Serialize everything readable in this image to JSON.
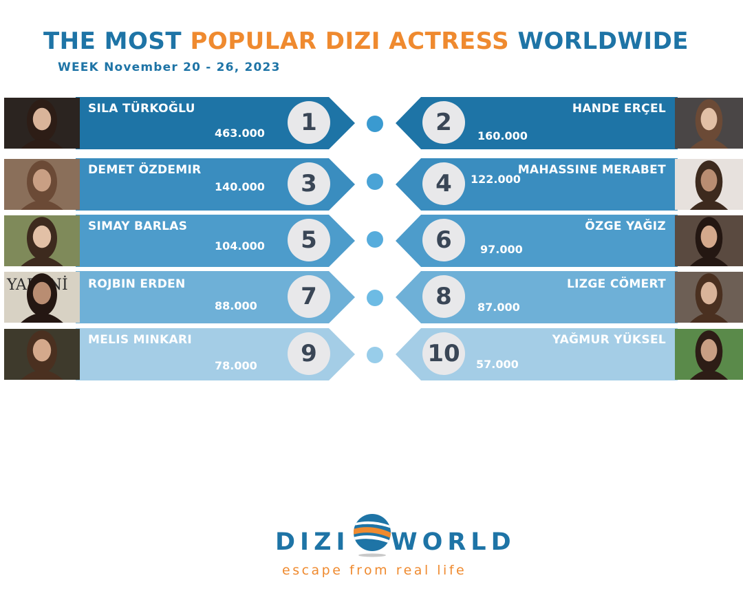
{
  "header": {
    "title_part1": "THE MOST",
    "title_part2": "POPULAR DIZI ACTRESS",
    "title_part3": "WORLDWIDE",
    "week": "WEEK November 20 - 26, 2023",
    "colors": {
      "blue": "#1e74a6",
      "orange": "#ef8a2f"
    }
  },
  "rankings": [
    {
      "left": {
        "rank": "1",
        "name": "SILA TÜRKOĞLU",
        "value": "463.000"
      },
      "right": {
        "rank": "2",
        "name": "HANDE ERÇEL",
        "value": "160.000"
      },
      "color": "#1e74a6",
      "dot_color": "#3a9ad0"
    },
    {
      "left": {
        "rank": "3",
        "name": "DEMET ÖZDEMIR",
        "value": "140.000"
      },
      "right": {
        "rank": "4",
        "name": "MAHASSINE MERABET",
        "value": "122.000"
      },
      "color": "#3a8dbf",
      "dot_color": "#4aa3d6"
    },
    {
      "left": {
        "rank": "5",
        "name": "SIMAY BARLAS",
        "value": "104.000"
      },
      "right": {
        "rank": "6",
        "name": "ÖZGE YAĞIZ",
        "value": "97.000"
      },
      "color": "#4d9ccb",
      "dot_color": "#56acdc"
    },
    {
      "left": {
        "rank": "7",
        "name": "ROJBIN ERDEN",
        "value": "88.000",
        "photo_text": "YABANİ"
      },
      "right": {
        "rank": "8",
        "name": "LIZGE CÖMERT",
        "value": "87.000"
      },
      "color": "#6eb0d7",
      "dot_color": "#6dbbe4"
    },
    {
      "left": {
        "rank": "9",
        "name": "MELIS MINKARI",
        "value": "78.000"
      },
      "right": {
        "rank": "10",
        "name": "YAĞMUR YÜKSEL",
        "value": "57.000"
      },
      "color": "#a4cde6",
      "dot_color": "#98cdea"
    }
  ],
  "footer": {
    "logo_left": "DIZI",
    "logo_right": "WORLD",
    "tagline": "escape from real life",
    "logo_icon": "globe-swoosh-icon"
  }
}
